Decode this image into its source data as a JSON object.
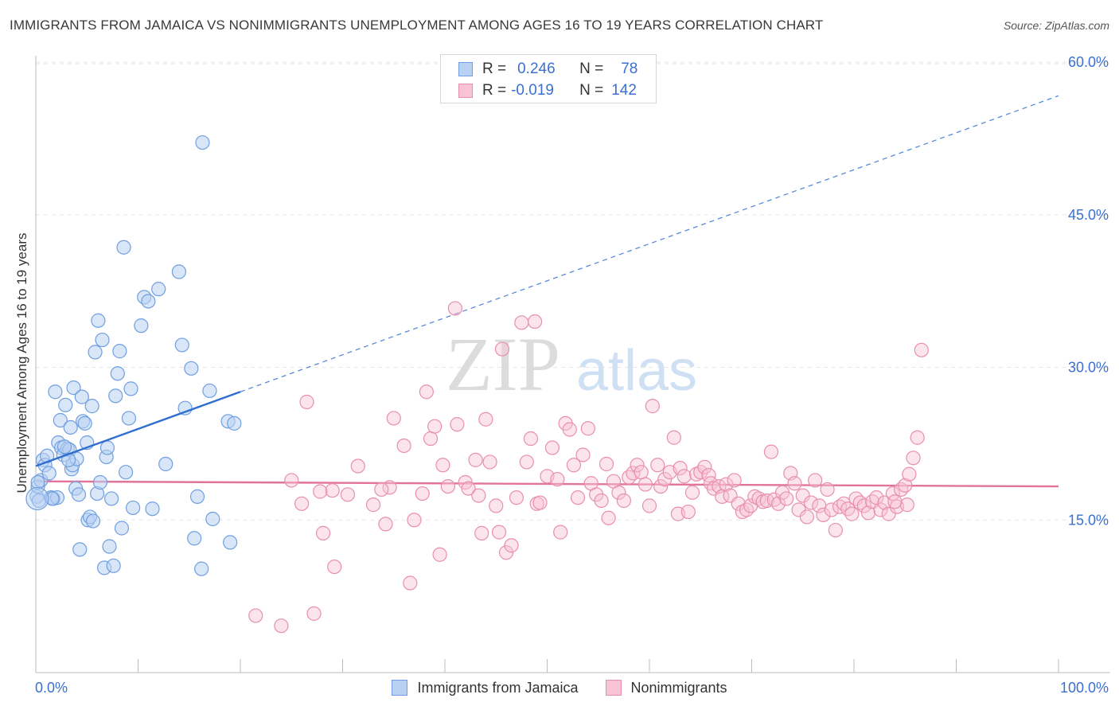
{
  "title": "IMMIGRANTS FROM JAMAICA VS NONIMMIGRANTS UNEMPLOYMENT AMONG AGES 16 TO 19 YEARS CORRELATION CHART",
  "source": "Source: ZipAtlas.com",
  "watermark": {
    "zip": "ZIP",
    "atlas": "atlas"
  },
  "colors": {
    "blue": "#6f9fe0",
    "blue_fill": "#b9d1f3",
    "blue_line": "#2f6ed0",
    "pink": "#e88fae",
    "pink_fill": "#f8c4d5",
    "pink_line": "#e2749c",
    "axis_text": "#3b6fd1",
    "grid": "#e6e6e6"
  },
  "legend_top": {
    "rows": [
      {
        "r_label": "R =",
        "r_value": "0.246",
        "n_label": "N =",
        "n_value": "78"
      },
      {
        "r_label": "R =",
        "r_value": "-0.019",
        "n_label": "N =",
        "n_value": "142"
      }
    ]
  },
  "legend_bottom": {
    "series1": "Immigrants from Jamaica",
    "series2": "Nonimmigrants"
  },
  "chart_data": {
    "type": "scatter",
    "title": "IMMIGRANTS FROM JAMAICA VS NONIMMIGRANTS UNEMPLOYMENT AMONG AGES 16 TO 19 YEARS CORRELATION CHART",
    "xlabel": "",
    "ylabel": "Unemployment Among Ages 16 to 19 years",
    "xlim": [
      0,
      100
    ],
    "ylim": [
      0,
      60
    ],
    "x_tick_labels": [
      "0.0%",
      "100.0%"
    ],
    "y_ticks": [
      15,
      30,
      45,
      60
    ],
    "y_tick_labels": [
      "15.0%",
      "30.0%",
      "45.0%",
      "60.0%"
    ],
    "grid": true,
    "series": [
      {
        "name": "Immigrants from Jamaica",
        "R": 0.246,
        "N": 78,
        "trend": {
          "x0": 0,
          "y0": 20.3,
          "x1": 20,
          "y1": 27.6,
          "dashed_to_x": 100,
          "dashed_to_y": 56.7
        },
        "points": [
          [
            0.1,
            17.3
          ],
          [
            0.2,
            18.3
          ],
          [
            0.3,
            16.9
          ],
          [
            0.5,
            18.9
          ],
          [
            0.7,
            20.9
          ],
          [
            0.9,
            20.4
          ],
          [
            1.1,
            21.3
          ],
          [
            1.3,
            19.6
          ],
          [
            1.5,
            17.2
          ],
          [
            1.7,
            17.1
          ],
          [
            1.9,
            27.6
          ],
          [
            2.1,
            17.2
          ],
          [
            2.2,
            22.6
          ],
          [
            2.4,
            24.8
          ],
          [
            2.5,
            22.1
          ],
          [
            2.7,
            21.4
          ],
          [
            2.9,
            26.3
          ],
          [
            3.1,
            22.0
          ],
          [
            3.3,
            21.9
          ],
          [
            3.4,
            24.1
          ],
          [
            3.5,
            20.0
          ],
          [
            3.6,
            20.4
          ],
          [
            3.7,
            28.0
          ],
          [
            3.9,
            18.1
          ],
          [
            4.0,
            21.0
          ],
          [
            4.2,
            17.5
          ],
          [
            4.3,
            12.1
          ],
          [
            4.5,
            27.1
          ],
          [
            4.6,
            24.7
          ],
          [
            4.8,
            24.5
          ],
          [
            5.0,
            22.6
          ],
          [
            5.1,
            15.0
          ],
          [
            5.3,
            15.3
          ],
          [
            5.5,
            26.2
          ],
          [
            5.6,
            14.9
          ],
          [
            5.8,
            31.5
          ],
          [
            6.0,
            17.6
          ],
          [
            6.1,
            34.6
          ],
          [
            6.3,
            18.7
          ],
          [
            6.5,
            32.7
          ],
          [
            6.7,
            10.3
          ],
          [
            6.9,
            21.2
          ],
          [
            7.0,
            22.1
          ],
          [
            7.2,
            12.4
          ],
          [
            7.4,
            17.1
          ],
          [
            7.6,
            10.5
          ],
          [
            7.8,
            27.2
          ],
          [
            8.0,
            29.4
          ],
          [
            8.2,
            31.6
          ],
          [
            8.4,
            14.2
          ],
          [
            8.6,
            41.8
          ],
          [
            8.8,
            19.7
          ],
          [
            9.1,
            25.0
          ],
          [
            9.3,
            27.9
          ],
          [
            9.5,
            16.2
          ],
          [
            10.3,
            34.1
          ],
          [
            10.6,
            36.9
          ],
          [
            11.0,
            36.5
          ],
          [
            11.4,
            16.1
          ],
          [
            12.0,
            37.7
          ],
          [
            12.7,
            20.5
          ],
          [
            14.0,
            39.4
          ],
          [
            14.3,
            32.2
          ],
          [
            14.6,
            26.0
          ],
          [
            15.2,
            29.9
          ],
          [
            15.5,
            13.2
          ],
          [
            15.8,
            17.3
          ],
          [
            16.2,
            10.2
          ],
          [
            16.3,
            52.1
          ],
          [
            17.0,
            27.7
          ],
          [
            17.3,
            15.1
          ],
          [
            18.8,
            24.7
          ],
          [
            19.0,
            12.8
          ],
          [
            19.4,
            24.5
          ],
          [
            0.2,
            18.7
          ],
          [
            1.6,
            17.1
          ],
          [
            2.8,
            22.2
          ],
          [
            3.2,
            20.9
          ]
        ]
      },
      {
        "name": "Nonimmigrants",
        "R": -0.019,
        "N": 142,
        "trend": {
          "x0": 0,
          "y0": 18.8,
          "x1": 100,
          "y1": 18.3
        },
        "points": [
          [
            21.5,
            5.6
          ],
          [
            24.0,
            4.6
          ],
          [
            25.0,
            18.9
          ],
          [
            26.0,
            16.6
          ],
          [
            26.5,
            26.6
          ],
          [
            27.2,
            5.8
          ],
          [
            28.1,
            13.7
          ],
          [
            29.0,
            17.9
          ],
          [
            29.2,
            10.4
          ],
          [
            30.5,
            17.5
          ],
          [
            31.5,
            20.3
          ],
          [
            33.0,
            16.5
          ],
          [
            34.2,
            14.6
          ],
          [
            34.6,
            18.2
          ],
          [
            35.0,
            25.0
          ],
          [
            36.0,
            22.3
          ],
          [
            36.6,
            8.8
          ],
          [
            37.0,
            15.0
          ],
          [
            37.8,
            17.6
          ],
          [
            38.2,
            27.6
          ],
          [
            38.6,
            23.0
          ],
          [
            39.0,
            24.2
          ],
          [
            39.5,
            11.6
          ],
          [
            39.8,
            20.4
          ],
          [
            40.3,
            18.3
          ],
          [
            41.0,
            35.8
          ],
          [
            41.2,
            24.4
          ],
          [
            42.0,
            18.7
          ],
          [
            42.3,
            18.1
          ],
          [
            43.0,
            20.9
          ],
          [
            43.3,
            17.4
          ],
          [
            43.6,
            13.7
          ],
          [
            44.0,
            24.9
          ],
          [
            44.4,
            20.7
          ],
          [
            45.0,
            16.4
          ],
          [
            45.3,
            13.8
          ],
          [
            45.6,
            31.8
          ],
          [
            46.0,
            11.8
          ],
          [
            46.5,
            12.5
          ],
          [
            47.0,
            17.2
          ],
          [
            47.5,
            34.4
          ],
          [
            48.0,
            20.7
          ],
          [
            48.4,
            23.0
          ],
          [
            48.8,
            34.5
          ],
          [
            49.0,
            16.6
          ],
          [
            49.3,
            16.7
          ],
          [
            50.0,
            19.3
          ],
          [
            50.5,
            22.1
          ],
          [
            51.0,
            19.0
          ],
          [
            51.3,
            13.8
          ],
          [
            51.8,
            24.5
          ],
          [
            52.2,
            23.9
          ],
          [
            52.6,
            20.4
          ],
          [
            53.0,
            17.2
          ],
          [
            53.5,
            21.4
          ],
          [
            54.0,
            24.0
          ],
          [
            54.3,
            18.6
          ],
          [
            54.8,
            17.5
          ],
          [
            55.3,
            16.9
          ],
          [
            55.8,
            20.5
          ],
          [
            56.0,
            15.2
          ],
          [
            56.5,
            18.8
          ],
          [
            57.0,
            17.7
          ],
          [
            57.5,
            16.9
          ],
          [
            58.0,
            19.2
          ],
          [
            58.4,
            19.6
          ],
          [
            58.8,
            20.4
          ],
          [
            59.2,
            19.7
          ],
          [
            59.6,
            18.5
          ],
          [
            60.0,
            16.4
          ],
          [
            60.3,
            26.2
          ],
          [
            60.8,
            20.4
          ],
          [
            61.1,
            18.3
          ],
          [
            61.5,
            19.0
          ],
          [
            62.0,
            19.7
          ],
          [
            62.4,
            23.1
          ],
          [
            62.8,
            15.6
          ],
          [
            63.0,
            20.1
          ],
          [
            63.4,
            19.3
          ],
          [
            63.8,
            15.8
          ],
          [
            64.2,
            17.7
          ],
          [
            64.6,
            19.5
          ],
          [
            65.0,
            19.7
          ],
          [
            65.4,
            20.2
          ],
          [
            65.8,
            19.4
          ],
          [
            66.0,
            18.6
          ],
          [
            66.3,
            18.1
          ],
          [
            66.8,
            18.3
          ],
          [
            67.1,
            17.3
          ],
          [
            67.5,
            18.5
          ],
          [
            67.9,
            17.4
          ],
          [
            68.3,
            18.9
          ],
          [
            68.7,
            16.6
          ],
          [
            69.1,
            15.8
          ],
          [
            69.5,
            16.0
          ],
          [
            69.9,
            16.4
          ],
          [
            70.3,
            17.3
          ],
          [
            70.7,
            17.1
          ],
          [
            71.1,
            16.8
          ],
          [
            71.5,
            16.9
          ],
          [
            71.9,
            21.7
          ],
          [
            72.2,
            17.0
          ],
          [
            72.6,
            16.6
          ],
          [
            73.0,
            17.7
          ],
          [
            73.4,
            17.1
          ],
          [
            73.8,
            19.6
          ],
          [
            74.2,
            18.6
          ],
          [
            74.6,
            16.0
          ],
          [
            75.0,
            17.4
          ],
          [
            75.4,
            15.3
          ],
          [
            75.8,
            16.7
          ],
          [
            76.2,
            18.9
          ],
          [
            76.6,
            16.4
          ],
          [
            77.0,
            15.5
          ],
          [
            77.4,
            18.0
          ],
          [
            77.8,
            16.0
          ],
          [
            78.2,
            14.0
          ],
          [
            78.6,
            16.3
          ],
          [
            79.0,
            16.6
          ],
          [
            79.4,
            16.1
          ],
          [
            79.8,
            15.6
          ],
          [
            80.2,
            17.1
          ],
          [
            80.6,
            16.7
          ],
          [
            81.0,
            16.4
          ],
          [
            81.4,
            15.7
          ],
          [
            81.8,
            16.8
          ],
          [
            82.2,
            17.2
          ],
          [
            82.6,
            16.0
          ],
          [
            83.0,
            16.7
          ],
          [
            83.4,
            15.6
          ],
          [
            83.8,
            17.6
          ],
          [
            84.2,
            16.3
          ],
          [
            84.6,
            18.0
          ],
          [
            85.0,
            18.4
          ],
          [
            85.4,
            19.5
          ],
          [
            85.8,
            21.1
          ],
          [
            86.2,
            23.1
          ],
          [
            86.6,
            31.7
          ],
          [
            85.2,
            16.5
          ],
          [
            84.0,
            16.8
          ],
          [
            27.8,
            17.8
          ],
          [
            33.8,
            18.0
          ]
        ]
      }
    ]
  }
}
